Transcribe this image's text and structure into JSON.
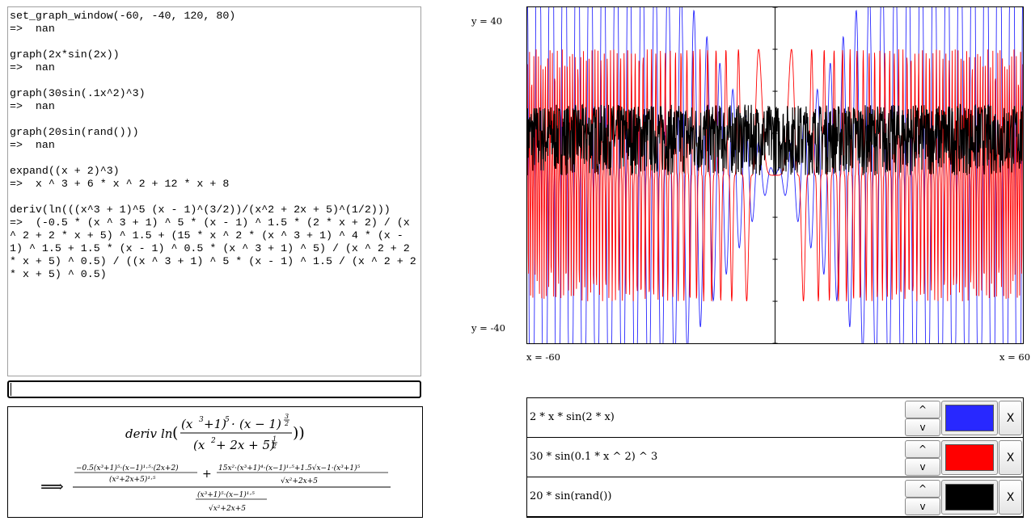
{
  "console": {
    "lines": [
      "set_graph_window(-60, -40, 120, 80)",
      "=>  nan",
      "",
      "graph(2x*sin(2x))",
      "=>  nan",
      "",
      "graph(30sin(.1x^2)^3)",
      "=>  nan",
      "",
      "graph(20sin(rand()))",
      "=>  nan",
      "",
      "expand((x + 2)^3)",
      "=>  x ^ 3 + 6 * x ^ 2 + 12 * x + 8",
      "",
      "deriv(ln(((x^3 + 1)^5 (x - 1)^(3/2))/(x^2 + 2x + 5)^(1/2)))",
      "=>  (-0.5 * (x ^ 3 + 1) ^ 5 * (x - 1) ^ 1.5 * (2 * x + 2) / (x ^ 2 + 2 * x + 5) ^ 1.5 + (15 * x ^ 2 * (x ^ 3 + 1) ^ 4 * (x - 1) ^ 1.5 + 1.5 * (x - 1) ^ 0.5 * (x ^ 3 + 1) ^ 5) / (x ^ 2 + 2 * x + 5) ^ 0.5) / ((x ^ 3 + 1) ^ 5 * (x - 1) ^ 1.5 / (x ^ 2 + 2 * x + 5) ^ 0.5)"
    ]
  },
  "input": {
    "value": ""
  },
  "math": {
    "fn": "deriv",
    "ln": "ln",
    "open": "(",
    "close": "))",
    "t1": "(x",
    "e3": "3",
    "t2": "+1)",
    "e5": "5",
    "dot": "·",
    "t3": "(x − 1)",
    "e32n": "3",
    "e32d": "2",
    "d1": "(x",
    "e2": "2",
    "d2": "+ 2x + 5)",
    "e12n": "1",
    "e12d": "2",
    "arrow": "⟹",
    "plus": "+",
    "a_num": "−0.5(x³+1)⁵·(x−1)¹·⁵·(2x+2)",
    "a_den": "(x²+2x+5)¹·⁵",
    "b_num": "15x²·(x³+1)⁴·(x−1)¹·⁵+1.5√x−1·(x³+1)⁵",
    "b_den": "√x²+2x+5",
    "c_num": "(x³+1)⁵·(x−1)¹·⁵",
    "c_den": "√x²+2x+5"
  },
  "graph": {
    "y_top": "y = 40",
    "y_bottom": "y = -40",
    "x_left": "x = -60",
    "x_right": "x = 60"
  },
  "chart_data": {
    "type": "line",
    "window": {
      "xmin": -60,
      "ymin": -40,
      "width": 120,
      "height": 80
    },
    "xlim": [
      -60,
      60
    ],
    "ylim": [
      -40,
      40
    ],
    "series": [
      {
        "expr": "2 * x * sin(2 * x)",
        "color": "#2828ff"
      },
      {
        "expr": "30 * sin(0.1 * x ^ 2) ^ 3",
        "color": "#ff0000"
      },
      {
        "expr": "20 * sin(rand())",
        "color": "#000000"
      }
    ]
  },
  "functions": [
    {
      "expr": "2 * x * sin(2 * x)",
      "up": "^",
      "down": "v",
      "color": "#2828ff",
      "remove": "X"
    },
    {
      "expr": "30 * sin(0.1 * x ^ 2) ^ 3",
      "up": "^",
      "down": "v",
      "color": "#ff0000",
      "remove": "X"
    },
    {
      "expr": "20 * sin(rand())",
      "up": "^",
      "down": "v",
      "color": "#000000",
      "remove": "X"
    }
  ]
}
